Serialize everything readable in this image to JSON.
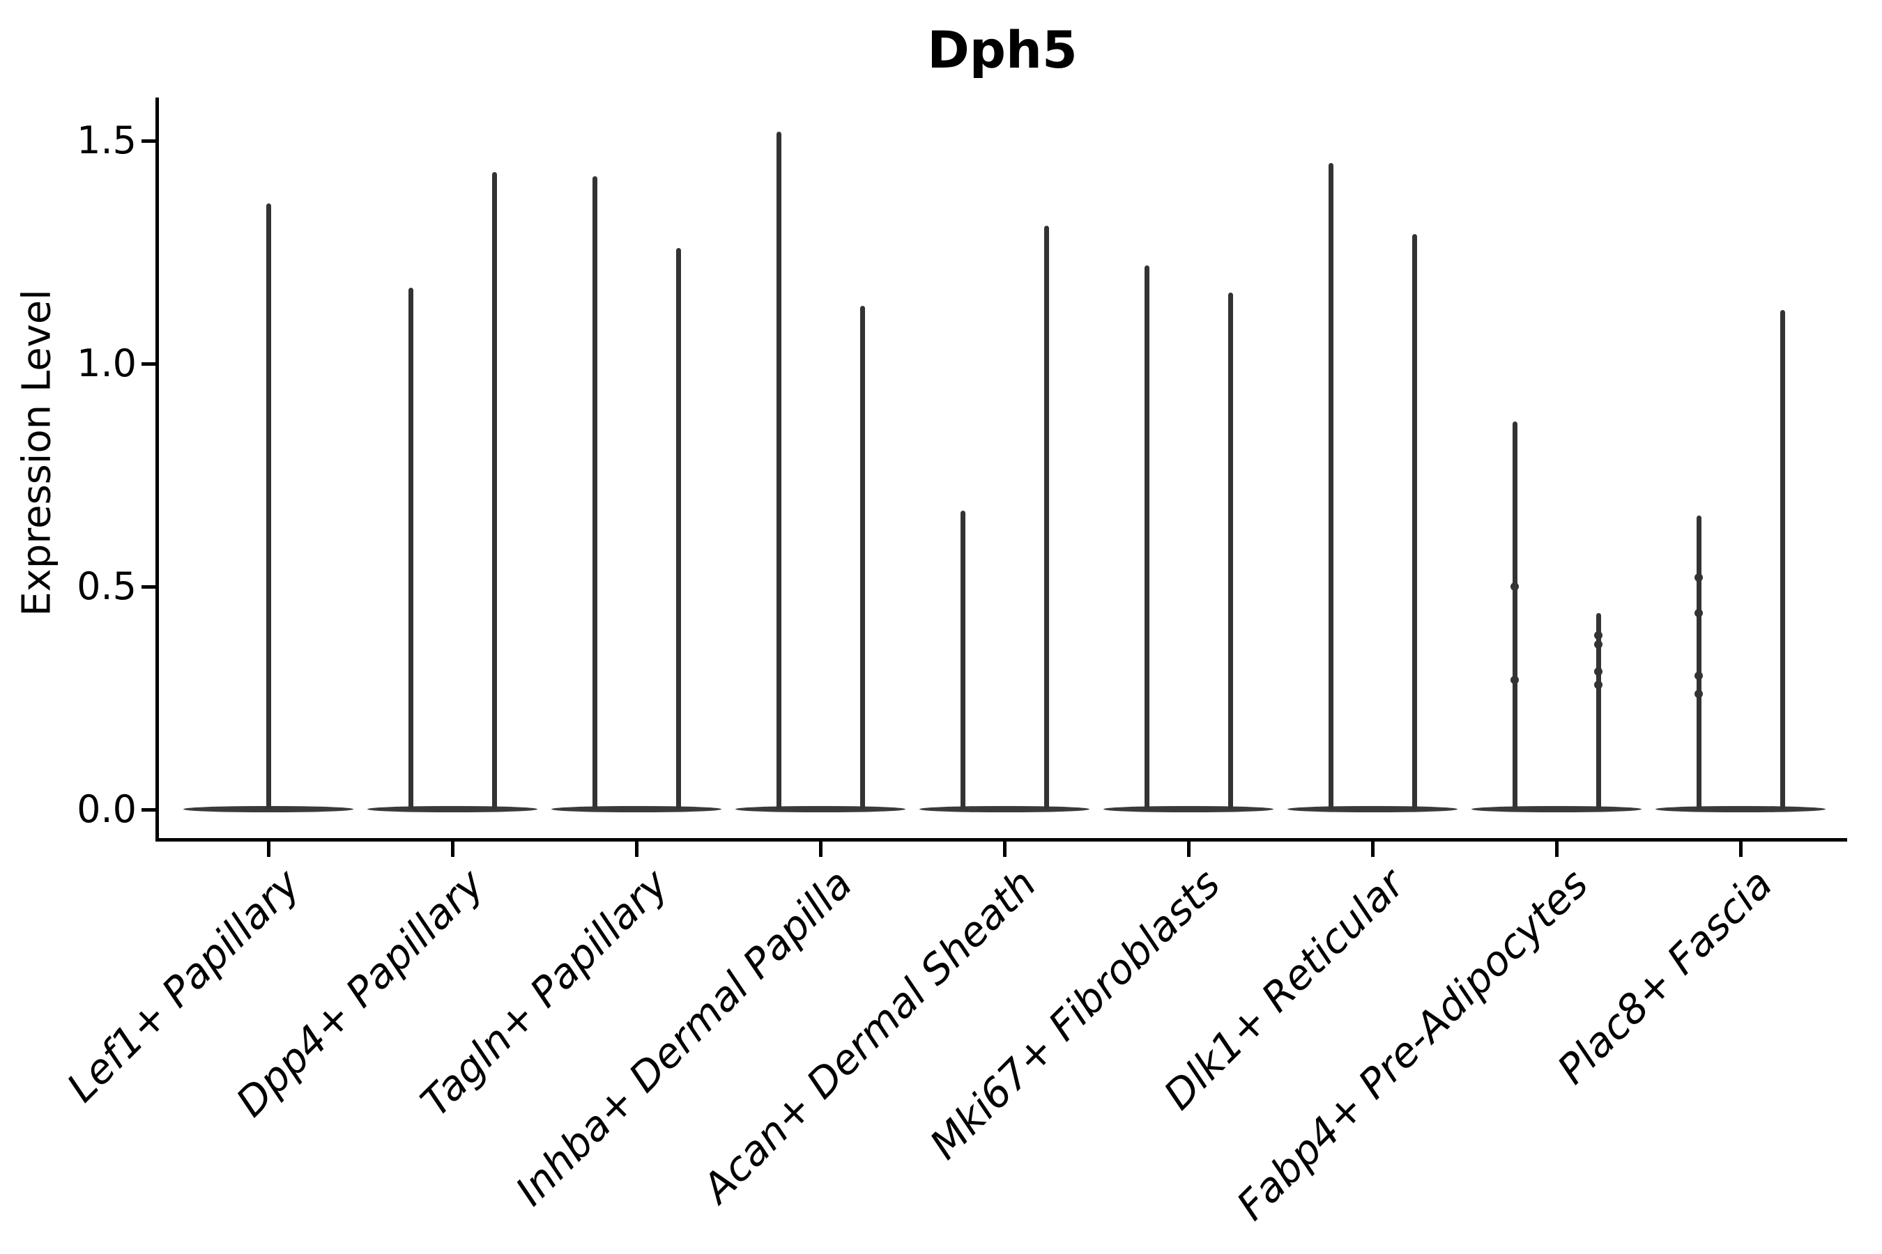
{
  "title": "Dph5",
  "ylabel": "Expression Level",
  "colors": {
    "background": "#ffffff",
    "axis": "#000000",
    "violin": "#333333",
    "violin_base": "#3a3a3a",
    "text": "#000000"
  },
  "chart_data": {
    "type": "violin",
    "title": "Dph5",
    "xlabel": "",
    "ylabel": "Expression Level",
    "ylim": [
      -0.07,
      1.6
    ],
    "yticks": [
      0.0,
      0.5,
      1.0,
      1.5
    ],
    "ytick_labels": [
      "0.0",
      "0.5",
      "1.0",
      "1.5"
    ],
    "grid": false,
    "legend": "none",
    "xtick_label_style": "italic, rotated 45deg, right-anchored",
    "shape_note": "zero-inflated expression violins: wide flat lens at 0 with hairline spike rising to the max expression value; one violin for the first category, two overlapping violins for the others",
    "categories": [
      "Lef1+ Papillary",
      "Dpp4+ Papillary",
      "Tagln+ Papillary",
      "Inhba+ Dermal Papilla",
      "Acan+ Dermal Sheath",
      "Mki67+ Fibroblasts",
      "Dlk1+ Reticular",
      "Fabp4+ Pre-Adipocytes",
      "Plac8+ Fascia"
    ],
    "violins": [
      {
        "category": "Lef1+ Papillary",
        "spikes": [
          {
            "position": "center",
            "max": 1.36
          }
        ]
      },
      {
        "category": "Dpp4+ Papillary",
        "spikes": [
          {
            "position": "left",
            "max": 1.17
          },
          {
            "position": "right",
            "max": 1.43
          }
        ]
      },
      {
        "category": "Tagln+ Papillary",
        "spikes": [
          {
            "position": "left",
            "max": 1.42
          },
          {
            "position": "right",
            "max": 1.26
          }
        ]
      },
      {
        "category": "Inhba+ Dermal Papilla",
        "spikes": [
          {
            "position": "left",
            "max": 1.52
          },
          {
            "position": "right",
            "max": 1.13
          }
        ]
      },
      {
        "category": "Acan+ Dermal Sheath",
        "spikes": [
          {
            "position": "left",
            "max": 0.67
          },
          {
            "position": "right",
            "max": 1.31
          }
        ]
      },
      {
        "category": "Mki67+ Fibroblasts",
        "spikes": [
          {
            "position": "left",
            "max": 1.22
          },
          {
            "position": "right",
            "max": 1.16
          }
        ]
      },
      {
        "category": "Dlk1+ Reticular",
        "spikes": [
          {
            "position": "left",
            "max": 1.45
          },
          {
            "position": "right",
            "max": 1.29
          }
        ]
      },
      {
        "category": "Fabp4+ Pre-Adipocytes",
        "spikes": [
          {
            "position": "left",
            "max": 0.87,
            "bumps": [
              0.5,
              0.29
            ]
          },
          {
            "position": "right",
            "max": 0.44,
            "bumps": [
              0.39,
              0.37,
              0.31,
              0.28
            ]
          }
        ]
      },
      {
        "category": "Plac8+ Fascia",
        "spikes": [
          {
            "position": "left",
            "max": 0.66,
            "bumps": [
              0.52,
              0.44,
              0.3,
              0.26
            ]
          },
          {
            "position": "right",
            "max": 1.12
          }
        ]
      }
    ]
  }
}
